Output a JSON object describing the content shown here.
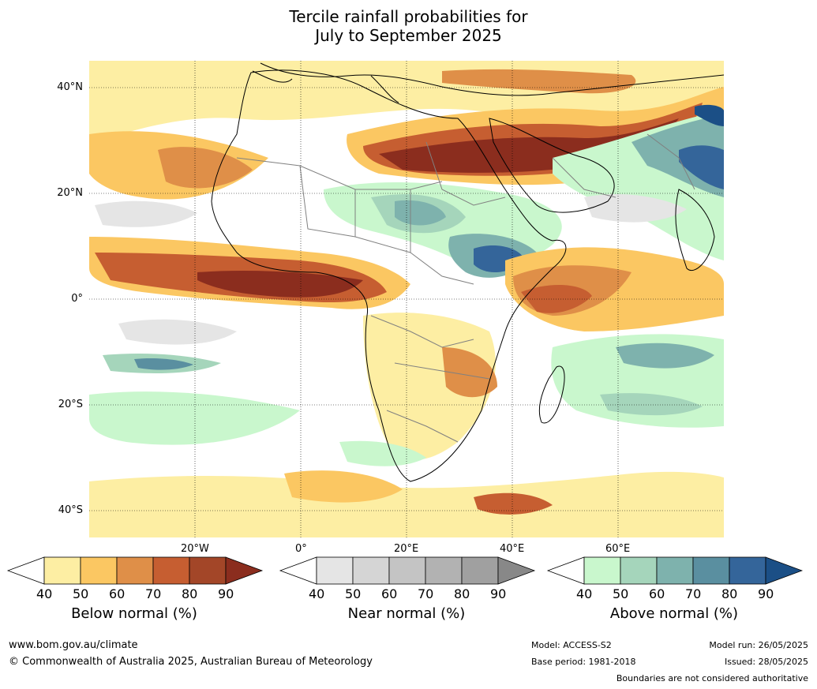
{
  "title": {
    "line1": "Tercile rainfall probabilities for",
    "line2": "July to September 2025"
  },
  "map": {
    "lat_labels": [
      "40°N",
      "20°N",
      "0°",
      "20°S",
      "40°S"
    ],
    "lon_labels": [
      "20°W",
      "0°",
      "20°E",
      "40°E",
      "60°E"
    ]
  },
  "colorbars": [
    {
      "title": "Below normal (%)",
      "ticks": [
        "40",
        "50",
        "60",
        "70",
        "80",
        "90"
      ],
      "colors": [
        "#fdeea3",
        "#fbc762",
        "#df8f48",
        "#c65e31",
        "#a34628",
        "#8b2d1e"
      ]
    },
    {
      "title": "Near normal (%)",
      "ticks": [
        "40",
        "50",
        "60",
        "70",
        "80",
        "90"
      ],
      "colors": [
        "#e5e5e5",
        "#d5d5d5",
        "#c4c4c4",
        "#b2b2b2",
        "#a0a0a0",
        "#888888"
      ]
    },
    {
      "title": "Above normal (%)",
      "ticks": [
        "40",
        "50",
        "60",
        "70",
        "80",
        "90"
      ],
      "colors": [
        "#c9f7cd",
        "#a5d5bb",
        "#7eb2ad",
        "#5a8fa0",
        "#34659a",
        "#1b4f86"
      ]
    }
  ],
  "footer": {
    "url": "www.bom.gov.au/climate",
    "copyright": "© Commonwealth of Australia 2025, Australian Bureau of Meteorology",
    "model": "Model: ACCESS-S2",
    "base_period": "Base period: 1981-2018",
    "model_run": "Model run: 26/05/2025",
    "issued": "Issued: 28/05/2025",
    "disclaimer": "Boundaries are not considered authoritative"
  }
}
